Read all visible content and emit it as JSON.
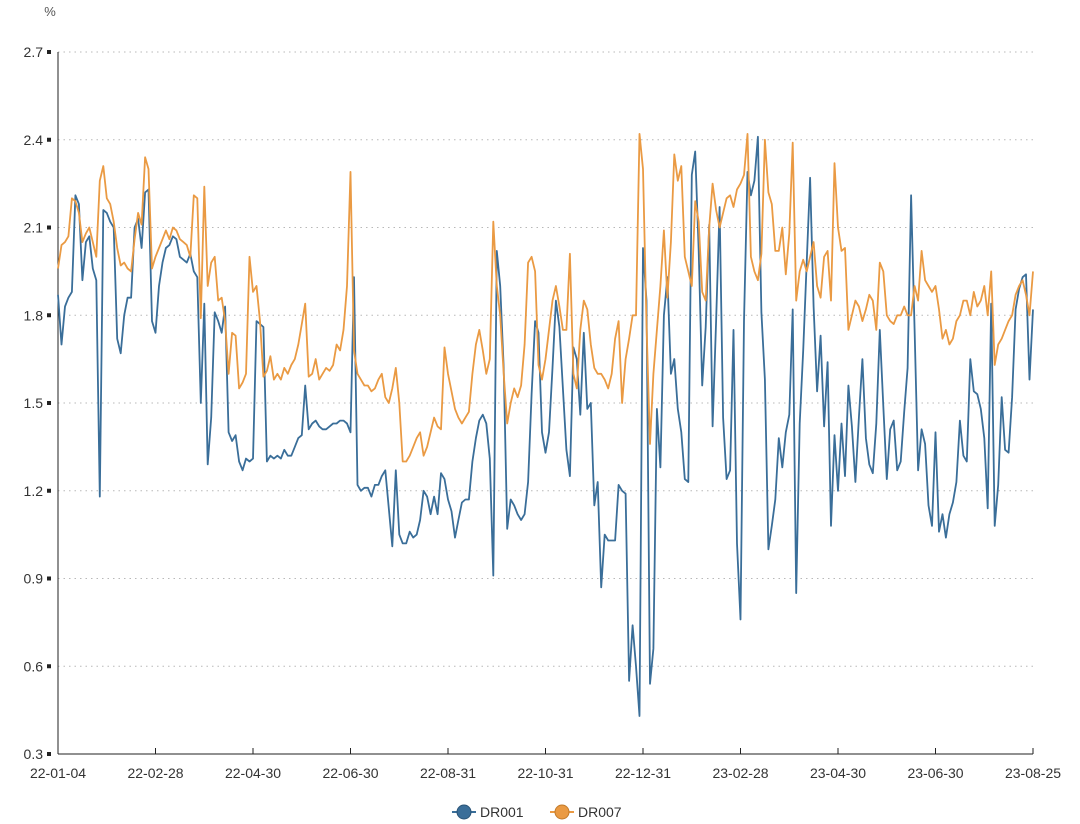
{
  "chart_data": {
    "type": "line",
    "title": "",
    "ylabel": "%",
    "xlabel": "",
    "ylim": [
      0.3,
      2.7
    ],
    "yticks": [
      "0.3",
      "0.6",
      "0.9",
      "1.2",
      "1.5",
      "1.8",
      "2.1",
      "2.4",
      "2.7"
    ],
    "xticks": [
      "22-01-04",
      "22-02-28",
      "22-04-30",
      "22-06-30",
      "22-08-31",
      "22-10-31",
      "22-12-31",
      "23-02-28",
      "23-04-30",
      "23-06-30",
      "23-08-25"
    ],
    "grid": "horizontal-dotted",
    "legend_position": "bottom-center",
    "series": [
      {
        "name": "DR001",
        "color": "#3a6e99",
        "values": [
          1.87,
          1.7,
          1.83,
          1.86,
          1.88,
          2.21,
          2.18,
          1.92,
          2.05,
          2.07,
          1.96,
          1.92,
          1.18,
          2.16,
          2.15,
          2.12,
          2.1,
          1.72,
          1.67,
          1.8,
          1.86,
          1.86,
          2.1,
          2.13,
          2.03,
          2.22,
          2.23,
          1.78,
          1.74,
          1.9,
          1.98,
          2.03,
          2.04,
          2.07,
          2.06,
          2.0,
          1.99,
          1.98,
          2.01,
          1.95,
          1.93,
          1.5,
          1.84,
          1.29,
          1.45,
          1.81,
          1.78,
          1.74,
          1.83,
          1.4,
          1.37,
          1.39,
          1.3,
          1.27,
          1.31,
          1.3,
          1.31,
          1.78,
          1.77,
          1.76,
          1.3,
          1.32,
          1.31,
          1.32,
          1.31,
          1.34,
          1.32,
          1.32,
          1.35,
          1.38,
          1.39,
          1.56,
          1.41,
          1.43,
          1.44,
          1.42,
          1.41,
          1.41,
          1.42,
          1.43,
          1.43,
          1.44,
          1.44,
          1.43,
          1.4,
          1.93,
          1.22,
          1.2,
          1.21,
          1.21,
          1.18,
          1.22,
          1.22,
          1.25,
          1.27,
          1.14,
          1.01,
          1.27,
          1.05,
          1.02,
          1.02,
          1.06,
          1.04,
          1.05,
          1.1,
          1.2,
          1.18,
          1.12,
          1.18,
          1.12,
          1.26,
          1.24,
          1.17,
          1.13,
          1.04,
          1.1,
          1.16,
          1.17,
          1.17,
          1.3,
          1.38,
          1.44,
          1.46,
          1.43,
          1.31,
          0.91,
          2.02,
          1.9,
          1.62,
          1.07,
          1.17,
          1.15,
          1.12,
          1.1,
          1.12,
          1.23,
          1.53,
          1.78,
          1.74,
          1.4,
          1.33,
          1.4,
          1.62,
          1.85,
          1.76,
          1.55,
          1.34,
          1.25,
          1.69,
          1.65,
          1.46,
          1.74,
          1.48,
          1.5,
          1.15,
          1.23,
          0.87,
          1.05,
          1.03,
          1.03,
          1.03,
          1.22,
          1.2,
          1.19,
          0.55,
          0.74,
          0.6,
          0.43,
          2.03,
          1.85,
          0.54,
          0.66,
          1.48,
          1.28,
          1.8,
          1.93,
          1.6,
          1.65,
          1.48,
          1.4,
          1.24,
          1.23,
          2.28,
          2.36,
          2.02,
          1.56,
          1.76,
          2.11,
          1.42,
          1.78,
          2.17,
          1.45,
          1.24,
          1.27,
          1.75,
          1.02,
          0.76,
          1.78,
          2.29,
          2.21,
          2.26,
          2.41,
          1.81,
          1.58,
          1.0,
          1.08,
          1.17,
          1.38,
          1.28,
          1.4,
          1.46,
          1.82,
          0.85,
          1.43,
          1.68,
          1.98,
          2.27,
          1.83,
          1.54,
          1.73,
          1.42,
          1.64,
          1.08,
          1.39,
          1.2,
          1.43,
          1.25,
          1.56,
          1.42,
          1.23,
          1.45,
          1.65,
          1.38,
          1.29,
          1.26,
          1.43,
          1.75,
          1.49,
          1.24,
          1.41,
          1.44,
          1.27,
          1.3,
          1.47,
          1.62,
          2.21,
          1.75,
          1.27,
          1.41,
          1.36,
          1.15,
          1.08,
          1.4,
          1.06,
          1.12,
          1.04,
          1.12,
          1.16,
          1.23,
          1.44,
          1.32,
          1.3,
          1.65,
          1.54,
          1.53,
          1.48,
          1.38,
          1.14,
          1.84,
          1.08,
          1.22,
          1.52,
          1.34,
          1.33,
          1.52,
          1.82,
          1.89,
          1.93,
          1.94,
          1.58,
          1.82
        ]
      },
      {
        "name": "DR007",
        "color": "#ea9a43",
        "values": [
          1.96,
          2.04,
          2.05,
          2.07,
          2.2,
          2.19,
          2.15,
          2.05,
          2.08,
          2.1,
          2.05,
          2.0,
          2.26,
          2.31,
          2.2,
          2.18,
          2.12,
          2.03,
          1.97,
          1.98,
          1.96,
          1.95,
          2.06,
          2.15,
          2.11,
          2.34,
          2.3,
          1.96,
          2.0,
          2.03,
          2.06,
          2.09,
          2.06,
          2.1,
          2.09,
          2.06,
          2.05,
          2.04,
          2.0,
          2.21,
          2.2,
          1.79,
          2.24,
          1.9,
          1.98,
          2.0,
          1.85,
          1.86,
          1.78,
          1.6,
          1.74,
          1.73,
          1.55,
          1.57,
          1.6,
          2.0,
          1.88,
          1.9,
          1.78,
          1.59,
          1.61,
          1.66,
          1.58,
          1.6,
          1.58,
          1.62,
          1.6,
          1.63,
          1.65,
          1.7,
          1.77,
          1.84,
          1.59,
          1.6,
          1.65,
          1.58,
          1.6,
          1.62,
          1.61,
          1.63,
          1.7,
          1.68,
          1.75,
          1.9,
          2.29,
          1.68,
          1.6,
          1.58,
          1.56,
          1.56,
          1.54,
          1.55,
          1.58,
          1.6,
          1.52,
          1.5,
          1.55,
          1.62,
          1.5,
          1.3,
          1.3,
          1.32,
          1.35,
          1.38,
          1.4,
          1.32,
          1.35,
          1.4,
          1.45,
          1.42,
          1.41,
          1.69,
          1.6,
          1.54,
          1.48,
          1.45,
          1.43,
          1.45,
          1.47,
          1.6,
          1.7,
          1.75,
          1.68,
          1.6,
          1.65,
          2.12,
          1.9,
          1.8,
          1.6,
          1.43,
          1.5,
          1.55,
          1.52,
          1.56,
          1.7,
          1.98,
          2.0,
          1.95,
          1.63,
          1.58,
          1.65,
          1.75,
          1.85,
          1.9,
          1.83,
          1.75,
          1.75,
          2.01,
          1.6,
          1.55,
          1.75,
          1.85,
          1.82,
          1.7,
          1.62,
          1.6,
          1.6,
          1.58,
          1.55,
          1.6,
          1.72,
          1.78,
          1.5,
          1.65,
          1.72,
          1.8,
          1.8,
          2.42,
          2.3,
          1.77,
          1.36,
          1.6,
          1.75,
          1.9,
          2.09,
          1.86,
          2.05,
          2.35,
          2.26,
          2.31,
          2.0,
          1.95,
          1.9,
          2.19,
          2.12,
          1.88,
          1.85,
          2.1,
          2.25,
          2.16,
          2.1,
          2.15,
          2.2,
          2.21,
          2.17,
          2.23,
          2.25,
          2.28,
          2.42,
          2.0,
          1.95,
          1.92,
          2.01,
          2.4,
          2.22,
          2.18,
          2.02,
          2.02,
          2.1,
          1.94,
          2.08,
          2.39,
          1.85,
          1.95,
          1.99,
          1.95,
          2.0,
          2.05,
          1.9,
          1.86,
          2.0,
          2.02,
          1.85,
          2.32,
          2.1,
          2.02,
          2.03,
          1.75,
          1.8,
          1.85,
          1.83,
          1.78,
          1.82,
          1.87,
          1.85,
          1.75,
          1.98,
          1.95,
          1.8,
          1.78,
          1.77,
          1.8,
          1.8,
          1.83,
          1.8,
          1.8,
          1.9,
          1.85,
          2.02,
          1.92,
          1.9,
          1.88,
          1.9,
          1.82,
          1.72,
          1.75,
          1.7,
          1.72,
          1.78,
          1.8,
          1.85,
          1.85,
          1.8,
          1.88,
          1.83,
          1.85,
          1.9,
          1.8,
          1.95,
          1.63,
          1.7,
          1.72,
          1.75,
          1.78,
          1.8,
          1.87,
          1.9,
          1.92,
          1.87,
          1.8,
          1.95
        ]
      }
    ]
  }
}
